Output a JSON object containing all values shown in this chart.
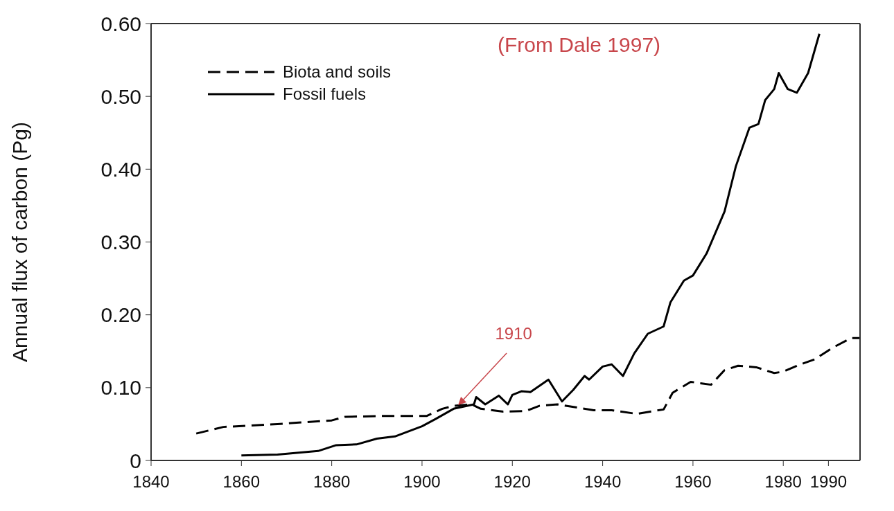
{
  "chart_data": {
    "type": "line",
    "xlabel": null,
    "ylabel": "Annual flux of carbon (Pg)",
    "xlim": [
      1840,
      1997
    ],
    "xticks": [
      1840,
      1860,
      1880,
      1900,
      1920,
      1940,
      1960,
      1980,
      1990
    ],
    "ylim": [
      0,
      0.6
    ],
    "yticks": [
      0,
      {
        "value": 0.1,
        "label": "0.10"
      },
      {
        "value": 0.2,
        "label": "0.20"
      },
      {
        "value": 0.3,
        "label": "0.30"
      },
      {
        "value": 0.4,
        "label": "0.40"
      },
      {
        "value": 0.5,
        "label": "0.50"
      },
      {
        "value": 0.6,
        "label": "0.60"
      }
    ],
    "legend": "top left",
    "marker": "none",
    "series": [
      {
        "name": "Biota and soils",
        "color": "#000000",
        "line_style": "dashed",
        "x": [
          1850,
          1856,
          1868,
          1880,
          1883,
          1891,
          1901,
          1904.5,
          1907,
          1911,
          1913,
          1918,
          1923,
          1926,
          1930,
          1938,
          1942,
          1947.5,
          1953.5,
          1955.5,
          1959.5,
          1964,
          1967,
          1970,
          1974,
          1978,
          1980,
          1983,
          1987,
          1991,
          1995,
          1997
        ],
        "values": [
          0.037,
          0.046,
          0.05,
          0.055,
          0.06,
          0.061,
          0.061,
          0.071,
          0.075,
          0.077,
          0.071,
          0.067,
          0.068,
          0.075,
          0.077,
          0.069,
          0.069,
          0.064,
          0.07,
          0.093,
          0.108,
          0.104,
          0.124,
          0.13,
          0.128,
          0.12,
          0.122,
          0.13,
          0.139,
          0.155,
          0.168,
          0.168
        ]
      },
      {
        "name": "Fossil fuels",
        "color": "#000000",
        "line_style": "solid",
        "x": [
          1860,
          1868,
          1877,
          1881,
          1885.5,
          1890,
          1894,
          1900,
          1903,
          1907,
          1911.5,
          1912,
          1914,
          1917,
          1919,
          1920,
          1922,
          1924,
          1928,
          1931,
          1933.5,
          1936,
          1937,
          1940,
          1942,
          1944.5,
          1947,
          1950,
          1953.5,
          1955,
          1958,
          1960,
          1963,
          1967,
          1969.5,
          1972.5,
          1974.5,
          1976,
          1978,
          1979,
          1981,
          1983,
          1985.5,
          1988
        ],
        "values": [
          0.007,
          0.008,
          0.013,
          0.021,
          0.022,
          0.03,
          0.033,
          0.047,
          0.057,
          0.071,
          0.077,
          0.087,
          0.077,
          0.089,
          0.077,
          0.09,
          0.095,
          0.094,
          0.111,
          0.081,
          0.097,
          0.116,
          0.111,
          0.129,
          0.132,
          0.116,
          0.147,
          0.174,
          0.184,
          0.217,
          0.247,
          0.254,
          0.284,
          0.342,
          0.404,
          0.457,
          0.462,
          0.495,
          0.51,
          0.532,
          0.51,
          0.505,
          0.532,
          0.586
        ]
      }
    ],
    "annotations": [
      "(From Dale 1997)",
      {
        "text": "1910",
        "x": 1908,
        "y": 0.076
      }
    ]
  }
}
